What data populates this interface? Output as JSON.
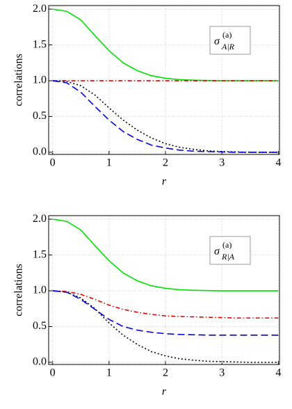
{
  "chart_data": [
    {
      "type": "line",
      "xlabel": "r",
      "ylabel": "correlations",
      "annotation": {
        "base": "σ",
        "sup": "(a)",
        "sub": "A|R"
      },
      "x": [
        0,
        0.25,
        0.5,
        0.75,
        1,
        1.25,
        1.5,
        1.75,
        2,
        2.25,
        2.5,
        2.75,
        3,
        3.25,
        3.5,
        3.75,
        4
      ],
      "series": [
        {
          "color": "#00e000",
          "linestyle": "solid",
          "values": [
            2,
            1.97,
            1.85,
            1.63,
            1.42,
            1.25,
            1.14,
            1.07,
            1.035,
            1.015,
            1.007,
            1.003,
            1,
            1,
            1,
            1,
            1
          ]
        },
        {
          "color": "#e00000",
          "linestyle": "dashdot",
          "values": [
            1,
            1,
            1,
            1,
            1,
            1,
            1,
            1,
            1,
            1,
            1,
            1,
            1,
            1,
            1,
            1,
            1
          ]
        },
        {
          "color": "#000000",
          "linestyle": "dotted",
          "values": [
            1,
            0.99,
            0.93,
            0.8,
            0.62,
            0.45,
            0.31,
            0.2,
            0.12,
            0.07,
            0.04,
            0.02,
            0.01,
            0.005,
            0,
            0,
            0
          ]
        },
        {
          "color": "#0000e0",
          "linestyle": "dashed",
          "values": [
            1,
            0.97,
            0.84,
            0.64,
            0.45,
            0.29,
            0.18,
            0.1,
            0.06,
            0.03,
            0.015,
            0.01,
            0.005,
            0,
            0,
            0,
            0
          ]
        }
      ],
      "xlim": [
        -0.07,
        4.02
      ],
      "ylim": [
        -0.03,
        2.05
      ],
      "xticks": [
        0,
        1,
        2,
        3,
        4
      ],
      "yticks": [
        {
          "value": 0,
          "label": "0.0"
        },
        {
          "value": 0.5,
          "label": "0.5"
        },
        {
          "value": 1,
          "label": "1.0"
        },
        {
          "value": 1.5,
          "label": "1.5"
        },
        {
          "value": 2,
          "label": "2.0"
        }
      ],
      "grid": true
    },
    {
      "type": "line",
      "xlabel": "r",
      "ylabel": "correlations",
      "annotation": {
        "base": "σ",
        "sup": "(a)",
        "sub": "R|A"
      },
      "x": [
        0,
        0.25,
        0.5,
        0.75,
        1,
        1.25,
        1.5,
        1.75,
        2,
        2.25,
        2.5,
        2.75,
        3,
        3.25,
        3.5,
        3.75,
        4
      ],
      "series": [
        {
          "color": "#00e000",
          "linestyle": "solid",
          "values": [
            2,
            1.97,
            1.85,
            1.63,
            1.42,
            1.25,
            1.14,
            1.07,
            1.035,
            1.015,
            1.007,
            1.003,
            1,
            1,
            1,
            1,
            1
          ]
        },
        {
          "color": "#e00000",
          "linestyle": "dashdot",
          "values": [
            1,
            0.99,
            0.95,
            0.88,
            0.8,
            0.74,
            0.7,
            0.67,
            0.65,
            0.64,
            0.635,
            0.63,
            0.625,
            0.62,
            0.62,
            0.62,
            0.62
          ]
        },
        {
          "color": "#000000",
          "linestyle": "dotted",
          "values": [
            1,
            0.98,
            0.9,
            0.75,
            0.55,
            0.38,
            0.25,
            0.15,
            0.09,
            0.05,
            0.03,
            0.015,
            0.01,
            0.005,
            0,
            0,
            0
          ]
        },
        {
          "color": "#0000e0",
          "linestyle": "dashed",
          "values": [
            1,
            0.98,
            0.88,
            0.74,
            0.6,
            0.5,
            0.45,
            0.42,
            0.4,
            0.39,
            0.385,
            0.38,
            0.38,
            0.38,
            0.38,
            0.38,
            0.38
          ]
        }
      ],
      "xlim": [
        -0.07,
        4.02
      ],
      "ylim": [
        -0.03,
        2.05
      ],
      "xticks": [
        0,
        1,
        2,
        3,
        4
      ],
      "yticks": [
        {
          "value": 0,
          "label": "0.0"
        },
        {
          "value": 0.5,
          "label": "0.5"
        },
        {
          "value": 1,
          "label": "1.0"
        },
        {
          "value": 1.5,
          "label": "1.5"
        },
        {
          "value": 2,
          "label": "2.0"
        }
      ],
      "grid": true
    }
  ]
}
